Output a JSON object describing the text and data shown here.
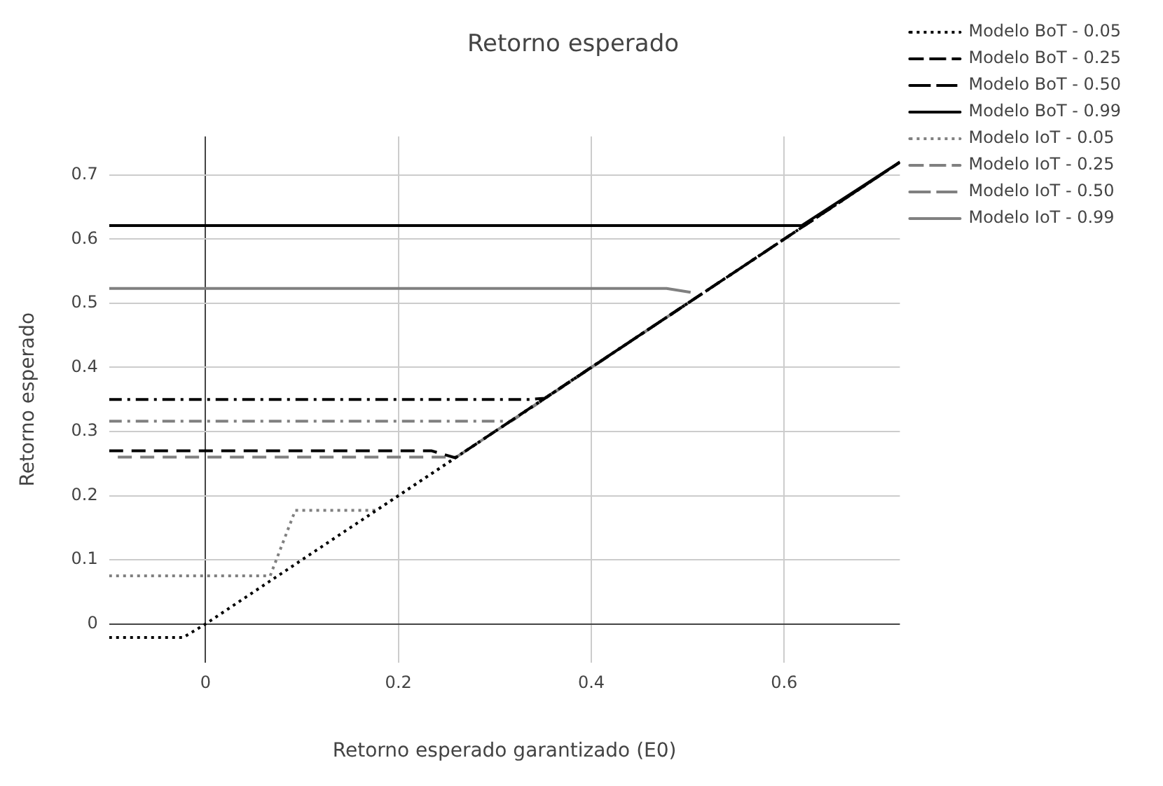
{
  "chart_data": {
    "type": "line",
    "title": "Retorno esperado",
    "xlabel": "Retorno esperado garantizado (E0)",
    "ylabel": "Retorno esperado",
    "xlim": [
      -0.1,
      0.72
    ],
    "ylim": [
      -0.06,
      0.76
    ],
    "xticks": [
      0,
      0.2,
      0.4,
      0.6
    ],
    "yticks": [
      0,
      0.1,
      0.2,
      0.3,
      0.4,
      0.5,
      0.6,
      0.7
    ],
    "grid": true,
    "legend": "top right",
    "marker": "none",
    "series": [
      {
        "name": "Modelo BoT - 0.05",
        "color": "#000000",
        "line_style": "dotted",
        "x": [
          -0.1,
          -0.023,
          0,
          0.72
        ],
        "values": [
          -0.021,
          -0.021,
          0,
          0.72
        ]
      },
      {
        "name": "Modelo BoT - 0.25",
        "color": "#000000",
        "line_style": "dashed",
        "x": [
          -0.1,
          0.234,
          0.259,
          0.72
        ],
        "values": [
          0.27,
          0.27,
          0.259,
          0.72
        ]
      },
      {
        "name": "Modelo BoT - 0.50",
        "color": "#000000",
        "line_style": "dashdot",
        "x": [
          -0.1,
          0.336,
          0.352,
          0.72
        ],
        "values": [
          0.35,
          0.35,
          0.352,
          0.72
        ]
      },
      {
        "name": "Modelo BoT - 0.99",
        "color": "#000000",
        "line_style": "solid",
        "x": [
          -0.1,
          0.618,
          0.72
        ],
        "values": [
          0.621,
          0.621,
          0.72
        ]
      },
      {
        "name": "Modelo IoT - 0.05",
        "color": "#808080",
        "line_style": "dotted",
        "x": [
          -0.1,
          0.067,
          0.093,
          0.177,
          0.5
        ],
        "values": [
          0.075,
          0.075,
          0.177,
          0.177,
          0.5
        ]
      },
      {
        "name": "Modelo IoT - 0.25",
        "color": "#808080",
        "line_style": "dashed",
        "x": [
          -0.091,
          0.245,
          0.26,
          0.5
        ],
        "values": [
          0.26,
          0.26,
          0.26,
          0.5
        ]
      },
      {
        "name": "Modelo IoT - 0.50",
        "color": "#808080",
        "line_style": "dashdot",
        "x": [
          -0.1,
          0.317,
          0.5
        ],
        "values": [
          0.316,
          0.316,
          0.5
        ]
      },
      {
        "name": "Modelo IoT - 0.99",
        "color": "#808080",
        "line_style": "solid",
        "x": [
          -0.1,
          0.478,
          0.503
        ],
        "values": [
          0.523,
          0.523,
          0.517
        ]
      }
    ]
  }
}
